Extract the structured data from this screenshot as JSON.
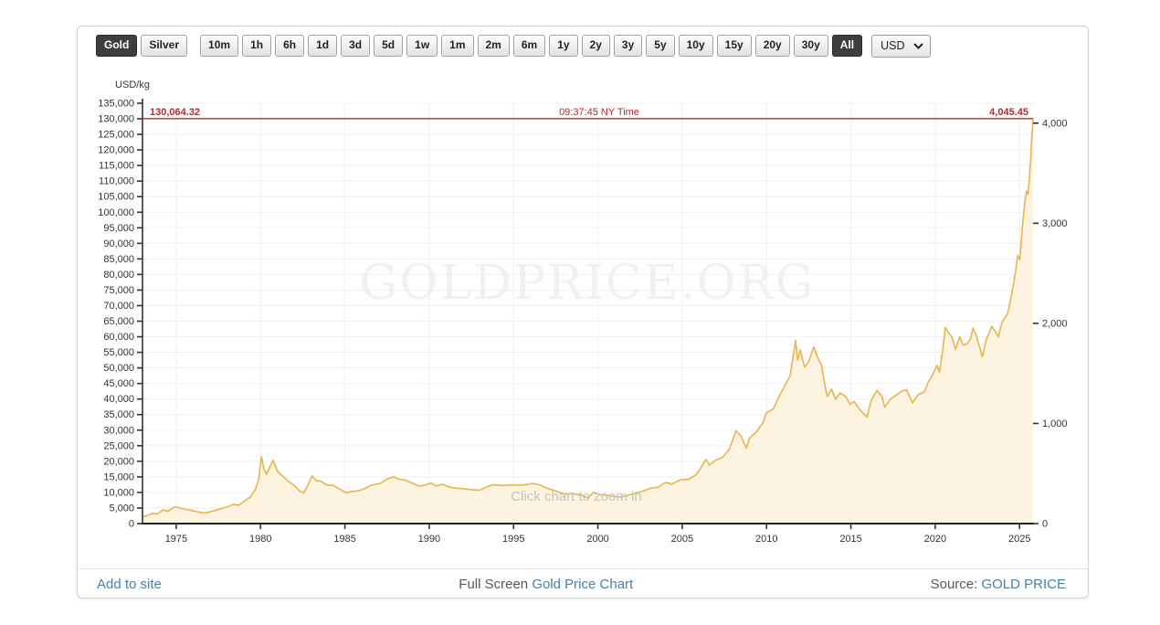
{
  "toolbar": {
    "metal_buttons": [
      {
        "label": "Gold",
        "selected": true
      },
      {
        "label": "Silver",
        "selected": false
      }
    ],
    "range_buttons": [
      {
        "label": "10m",
        "selected": false
      },
      {
        "label": "1h",
        "selected": false
      },
      {
        "label": "6h",
        "selected": false
      },
      {
        "label": "1d",
        "selected": false
      },
      {
        "label": "3d",
        "selected": false
      },
      {
        "label": "5d",
        "selected": false
      },
      {
        "label": "1w",
        "selected": false
      },
      {
        "label": "1m",
        "selected": false
      },
      {
        "label": "2m",
        "selected": false
      },
      {
        "label": "6m",
        "selected": false
      },
      {
        "label": "1y",
        "selected": false
      },
      {
        "label": "2y",
        "selected": false
      },
      {
        "label": "3y",
        "selected": false
      },
      {
        "label": "5y",
        "selected": false
      },
      {
        "label": "10y",
        "selected": false
      },
      {
        "label": "15y",
        "selected": false
      },
      {
        "label": "20y",
        "selected": false
      },
      {
        "label": "30y",
        "selected": false
      },
      {
        "label": "All",
        "selected": true
      }
    ],
    "currency": {
      "value": "USD"
    }
  },
  "footer": {
    "add_to_site": "Add to site",
    "full_screen": "Full Screen ",
    "chart_link": "Gold Price Chart",
    "source_label": "Source: ",
    "source_link": "GOLD PRICE"
  },
  "chart_data": {
    "type": "area",
    "unit_label": "USD/kg",
    "watermark": "GOLDPRICE.ORG",
    "hint": "Click chart to zoom in",
    "x_ticks": [
      1975,
      1980,
      1985,
      1990,
      1995,
      2000,
      2005,
      2010,
      2015,
      2020,
      2025
    ],
    "x_range": [
      1973.0,
      2025.8
    ],
    "y_left": {
      "min": 0,
      "max": 135000,
      "step": 5000
    },
    "y_right": {
      "ticks": [
        0,
        1000,
        2000,
        3000,
        4000
      ],
      "oz_per_kg": 32.1507
    },
    "current": {
      "usd_per_kg_label": "130,064.32",
      "usd_per_kg_value": 130064.32,
      "time_label": "09:37:45 NY Time",
      "usd_per_oz_label": "4,045.45"
    },
    "colors": {
      "line": "#e9b44c",
      "fill": "#fcf3e0",
      "red": "#c12525",
      "grid": "#efefef",
      "axis": "#333333",
      "watermark": "#f1f1f1",
      "hint": "#c3c3c3"
    },
    "series": [
      [
        1973.0,
        2100
      ],
      [
        1973.3,
        2600
      ],
      [
        1973.6,
        3300
      ],
      [
        1973.9,
        3100
      ],
      [
        1974.2,
        4400
      ],
      [
        1974.5,
        3900
      ],
      [
        1974.9,
        5400
      ],
      [
        1975.2,
        5100
      ],
      [
        1975.5,
        4600
      ],
      [
        1975.9,
        4200
      ],
      [
        1976.3,
        3800
      ],
      [
        1976.7,
        3400
      ],
      [
        1977.1,
        3900
      ],
      [
        1977.6,
        4700
      ],
      [
        1978.0,
        5300
      ],
      [
        1978.4,
        6200
      ],
      [
        1978.7,
        5900
      ],
      [
        1979.0,
        7000
      ],
      [
        1979.4,
        8600
      ],
      [
        1979.7,
        11000
      ],
      [
        1979.9,
        14500
      ],
      [
        1980.05,
        21500
      ],
      [
        1980.2,
        17500
      ],
      [
        1980.35,
        15800
      ],
      [
        1980.55,
        18200
      ],
      [
        1980.75,
        20300
      ],
      [
        1981.0,
        16800
      ],
      [
        1981.3,
        15300
      ],
      [
        1981.6,
        13800
      ],
      [
        1982.0,
        12200
      ],
      [
        1982.3,
        10600
      ],
      [
        1982.55,
        9800
      ],
      [
        1982.8,
        12300
      ],
      [
        1983.05,
        15300
      ],
      [
        1983.3,
        13800
      ],
      [
        1983.6,
        13600
      ],
      [
        1983.9,
        12400
      ],
      [
        1984.3,
        12300
      ],
      [
        1984.7,
        11000
      ],
      [
        1985.1,
        9900
      ],
      [
        1985.4,
        10300
      ],
      [
        1985.8,
        10500
      ],
      [
        1986.2,
        11300
      ],
      [
        1986.5,
        12200
      ],
      [
        1986.8,
        12600
      ],
      [
        1987.1,
        12900
      ],
      [
        1987.5,
        14300
      ],
      [
        1987.9,
        15000
      ],
      [
        1988.2,
        14300
      ],
      [
        1988.6,
        13900
      ],
      [
        1989.0,
        13000
      ],
      [
        1989.4,
        12000
      ],
      [
        1989.8,
        12400
      ],
      [
        1990.1,
        13100
      ],
      [
        1990.4,
        12100
      ],
      [
        1990.8,
        12600
      ],
      [
        1991.2,
        11700
      ],
      [
        1991.6,
        11400
      ],
      [
        1992.0,
        11200
      ],
      [
        1992.5,
        10900
      ],
      [
        1993.0,
        10700
      ],
      [
        1993.4,
        11800
      ],
      [
        1993.8,
        12500
      ],
      [
        1994.3,
        12200
      ],
      [
        1994.8,
        12400
      ],
      [
        1995.3,
        12350
      ],
      [
        1995.8,
        12500
      ],
      [
        1996.1,
        12900
      ],
      [
        1996.5,
        12500
      ],
      [
        1997.0,
        11300
      ],
      [
        1997.5,
        10500
      ],
      [
        1998.0,
        9500
      ],
      [
        1998.5,
        9600
      ],
      [
        1999.0,
        9200
      ],
      [
        1999.4,
        8300
      ],
      [
        1999.75,
        10000
      ],
      [
        2000.1,
        9300
      ],
      [
        2000.5,
        9100
      ],
      [
        2000.9,
        8800
      ],
      [
        2001.3,
        8500
      ],
      [
        2001.7,
        8900
      ],
      [
        2002.1,
        9600
      ],
      [
        2002.6,
        10300
      ],
      [
        2003.1,
        11300
      ],
      [
        2003.6,
        11800
      ],
      [
        2004.0,
        13200
      ],
      [
        2004.4,
        12700
      ],
      [
        2004.9,
        14100
      ],
      [
        2005.4,
        14200
      ],
      [
        2005.8,
        15600
      ],
      [
        2006.1,
        17800
      ],
      [
        2006.4,
        20600
      ],
      [
        2006.6,
        18800
      ],
      [
        2007.0,
        20400
      ],
      [
        2007.4,
        21300
      ],
      [
        2007.8,
        24000
      ],
      [
        2008.2,
        29800
      ],
      [
        2008.5,
        28000
      ],
      [
        2008.8,
        24200
      ],
      [
        2009.0,
        27500
      ],
      [
        2009.4,
        29500
      ],
      [
        2009.8,
        32500
      ],
      [
        2010.0,
        35600
      ],
      [
        2010.4,
        36800
      ],
      [
        2010.8,
        41500
      ],
      [
        2011.1,
        44500
      ],
      [
        2011.4,
        47500
      ],
      [
        2011.72,
        58800
      ],
      [
        2011.85,
        52500
      ],
      [
        2012.0,
        55800
      ],
      [
        2012.25,
        50200
      ],
      [
        2012.5,
        52000
      ],
      [
        2012.8,
        56800
      ],
      [
        2013.0,
        53800
      ],
      [
        2013.25,
        51000
      ],
      [
        2013.45,
        44800
      ],
      [
        2013.6,
        40800
      ],
      [
        2013.85,
        43200
      ],
      [
        2014.1,
        39900
      ],
      [
        2014.35,
        42000
      ],
      [
        2014.7,
        40800
      ],
      [
        2014.95,
        38300
      ],
      [
        2015.2,
        39200
      ],
      [
        2015.5,
        36800
      ],
      [
        2015.95,
        34200
      ],
      [
        2016.2,
        39500
      ],
      [
        2016.55,
        42800
      ],
      [
        2016.85,
        40800
      ],
      [
        2017.0,
        37400
      ],
      [
        2017.35,
        40000
      ],
      [
        2017.7,
        41300
      ],
      [
        2018.0,
        42500
      ],
      [
        2018.3,
        43000
      ],
      [
        2018.65,
        38700
      ],
      [
        2019.0,
        41500
      ],
      [
        2019.35,
        42300
      ],
      [
        2019.6,
        45500
      ],
      [
        2019.85,
        47800
      ],
      [
        2020.1,
        50800
      ],
      [
        2020.25,
        48700
      ],
      [
        2020.45,
        56000
      ],
      [
        2020.6,
        63000
      ],
      [
        2020.8,
        61200
      ],
      [
        2021.0,
        59800
      ],
      [
        2021.2,
        55900
      ],
      [
        2021.45,
        60000
      ],
      [
        2021.65,
        57300
      ],
      [
        2021.9,
        57800
      ],
      [
        2022.1,
        59500
      ],
      [
        2022.25,
        62800
      ],
      [
        2022.45,
        60200
      ],
      [
        2022.6,
        57200
      ],
      [
        2022.8,
        53600
      ],
      [
        2023.0,
        58500
      ],
      [
        2023.15,
        60800
      ],
      [
        2023.35,
        63300
      ],
      [
        2023.55,
        61800
      ],
      [
        2023.75,
        60000
      ],
      [
        2023.95,
        64500
      ],
      [
        2024.1,
        65800
      ],
      [
        2024.3,
        67500
      ],
      [
        2024.45,
        71500
      ],
      [
        2024.6,
        75500
      ],
      [
        2024.75,
        80500
      ],
      [
        2024.9,
        86200
      ],
      [
        2025.02,
        84800
      ],
      [
        2025.12,
        92000
      ],
      [
        2025.22,
        98500
      ],
      [
        2025.32,
        103500
      ],
      [
        2025.42,
        106800
      ],
      [
        2025.5,
        105800
      ],
      [
        2025.58,
        110500
      ],
      [
        2025.66,
        117000
      ],
      [
        2025.72,
        123500
      ],
      [
        2025.8,
        130064
      ]
    ]
  }
}
